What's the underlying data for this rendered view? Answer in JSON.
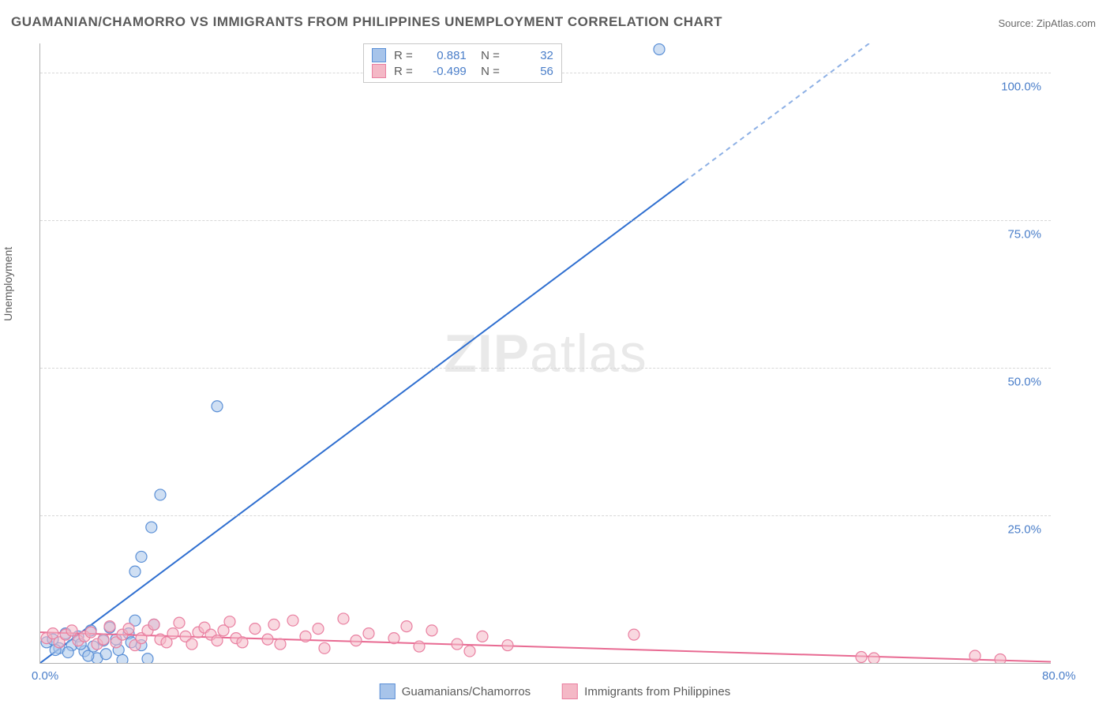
{
  "title": "GUAMANIAN/CHAMORRO VS IMMIGRANTS FROM PHILIPPINES UNEMPLOYMENT CORRELATION CHART",
  "source_label": "Source: ZipAtlas.com",
  "y_axis_label": "Unemployment",
  "watermark": {
    "bold": "ZIP",
    "rest": "atlas"
  },
  "chart": {
    "type": "scatter",
    "background_color": "#ffffff",
    "grid_color": "#d8d8d8",
    "axis_color": "#b0b0b0",
    "tick_label_color": "#4a7ec9",
    "text_color": "#5a5a5a",
    "xlim": [
      0,
      80
    ],
    "ylim": [
      0,
      105
    ],
    "x_ticks": [
      {
        "v": 0,
        "label": "0.0%"
      },
      {
        "v": 80,
        "label": "80.0%"
      }
    ],
    "y_ticks": [
      {
        "v": 25,
        "label": "25.0%"
      },
      {
        "v": 50,
        "label": "50.0%"
      },
      {
        "v": 75,
        "label": "75.0%"
      },
      {
        "v": 100,
        "label": "100.0%"
      }
    ],
    "marker_radius": 7,
    "marker_opacity": 0.55,
    "line_width": 2,
    "series": [
      {
        "name": "Guamanians/Chamorros",
        "color_fill": "#a7c4ea",
        "color_stroke": "#5a8fd6",
        "line_color": "#2f6fd0",
        "R": "0.881",
        "N": "32",
        "trend": {
          "x1": 0,
          "y1": 0,
          "x2": 80,
          "y2": 128,
          "dash_after_x": 51
        },
        "points": [
          [
            0.5,
            3.5
          ],
          [
            1,
            4
          ],
          [
            1.5,
            2.5
          ],
          [
            2,
            5
          ],
          [
            2.5,
            3
          ],
          [
            3,
            4.5
          ],
          [
            3.5,
            2
          ],
          [
            4,
            5.5
          ],
          [
            4.5,
            0.8
          ],
          [
            5,
            3.8
          ],
          [
            5.5,
            6
          ],
          [
            6,
            4
          ],
          [
            6.5,
            0.5
          ],
          [
            7,
            5
          ],
          [
            7.5,
            7.2
          ],
          [
            8,
            3
          ],
          [
            8.5,
            0.7
          ],
          [
            9,
            6.5
          ],
          [
            3.8,
            1.2
          ],
          [
            4.2,
            2.8
          ],
          [
            5.2,
            1.5
          ],
          [
            6.2,
            2.2
          ],
          [
            7.2,
            3.5
          ],
          [
            2.2,
            1.8
          ],
          [
            1.2,
            2.2
          ],
          [
            7.5,
            15.5
          ],
          [
            8.8,
            23
          ],
          [
            9.5,
            28.5
          ],
          [
            8,
            18
          ],
          [
            14,
            43.5
          ],
          [
            49,
            104
          ],
          [
            3.2,
            3.2
          ]
        ]
      },
      {
        "name": "Immigrants from Philippines",
        "color_fill": "#f4b8c6",
        "color_stroke": "#e97fa0",
        "line_color": "#e86a92",
        "R": "-0.499",
        "N": "56",
        "trend": {
          "x1": 0,
          "y1": 5.2,
          "x2": 80,
          "y2": 0.2,
          "dash_after_x": null
        },
        "points": [
          [
            0.5,
            4.2
          ],
          [
            1,
            5
          ],
          [
            1.5,
            3.5
          ],
          [
            2,
            4.8
          ],
          [
            2.5,
            5.5
          ],
          [
            3,
            3.8
          ],
          [
            3.5,
            4.5
          ],
          [
            4,
            5.2
          ],
          [
            4.5,
            3.2
          ],
          [
            5,
            4
          ],
          [
            5.5,
            6.2
          ],
          [
            6,
            3.5
          ],
          [
            6.5,
            4.8
          ],
          [
            7,
            5.8
          ],
          [
            7.5,
            3
          ],
          [
            8,
            4.2
          ],
          [
            8.5,
            5.5
          ],
          [
            9,
            6.5
          ],
          [
            9.5,
            4
          ],
          [
            10,
            3.5
          ],
          [
            10.5,
            5
          ],
          [
            11,
            6.8
          ],
          [
            11.5,
            4.5
          ],
          [
            12,
            3.2
          ],
          [
            12.5,
            5.2
          ],
          [
            13,
            6
          ],
          [
            13.5,
            4.8
          ],
          [
            14,
            3.8
          ],
          [
            14.5,
            5.5
          ],
          [
            15,
            7
          ],
          [
            15.5,
            4.2
          ],
          [
            16,
            3.5
          ],
          [
            17,
            5.8
          ],
          [
            18,
            4
          ],
          [
            18.5,
            6.5
          ],
          [
            19,
            3.2
          ],
          [
            20,
            7.2
          ],
          [
            21,
            4.5
          ],
          [
            22,
            5.8
          ],
          [
            22.5,
            2.5
          ],
          [
            24,
            7.5
          ],
          [
            25,
            3.8
          ],
          [
            26,
            5
          ],
          [
            28,
            4.2
          ],
          [
            30,
            2.8
          ],
          [
            31,
            5.5
          ],
          [
            33,
            3.2
          ],
          [
            35,
            4.5
          ],
          [
            34,
            2
          ],
          [
            37,
            3
          ],
          [
            47,
            4.8
          ],
          [
            65,
            1
          ],
          [
            66,
            0.8
          ],
          [
            74,
            1.2
          ],
          [
            76,
            0.6
          ],
          [
            29,
            6.2
          ]
        ]
      }
    ]
  },
  "legend_bottom": [
    {
      "swatch_fill": "#a7c4ea",
      "swatch_stroke": "#5a8fd6",
      "label": "Guamanians/Chamorros"
    },
    {
      "swatch_fill": "#f4b8c6",
      "swatch_stroke": "#e97fa0",
      "label": "Immigrants from Philippines"
    }
  ]
}
